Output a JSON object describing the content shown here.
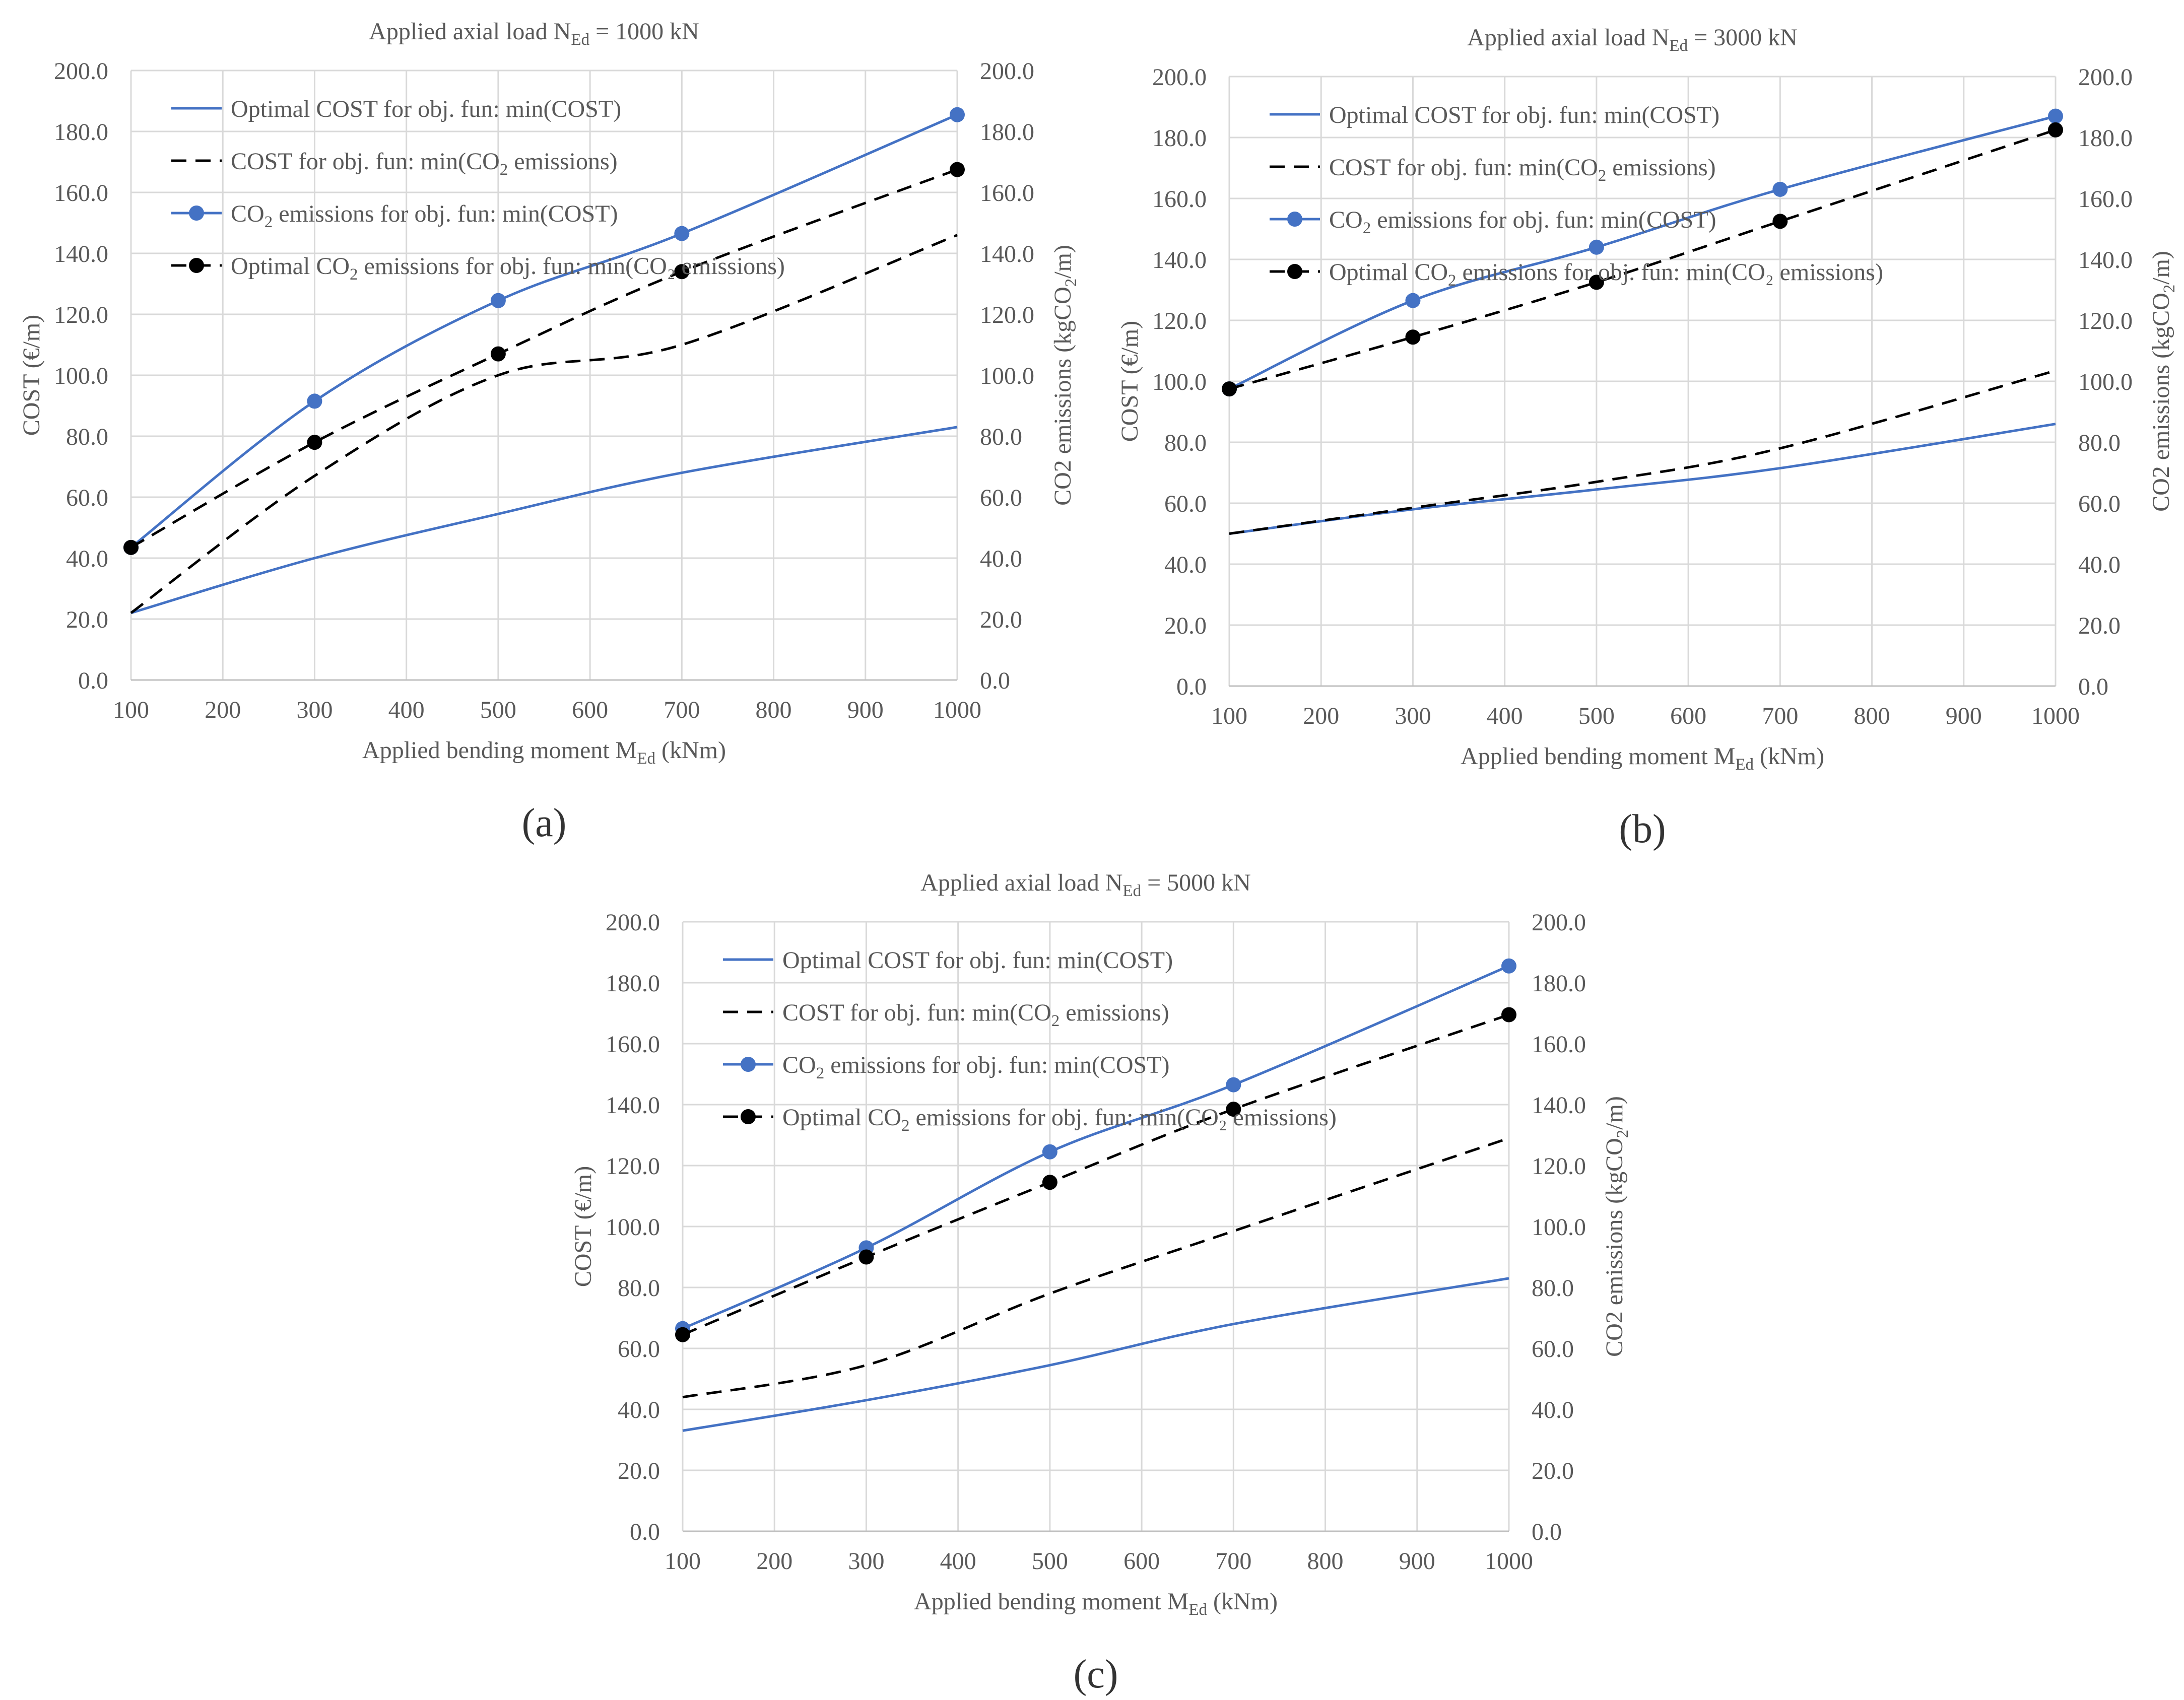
{
  "chart_data": [
    {
      "type": "line",
      "panel_label": "(a)",
      "title": {
        "prefix": "Applied axial load N",
        "sub": "Ed",
        "suffix": " = 1000 kN"
      },
      "xlabel": {
        "prefix": "Applied bending moment M",
        "sub": "Ed",
        "suffix": " (kNm)"
      },
      "ylabel": "COST (€/m)",
      "y2label": {
        "prefix": "CO2 emissions (kgCO",
        "sub": "2",
        "suffix": "/m)"
      },
      "x_ticks": [
        100,
        200,
        300,
        400,
        500,
        600,
        700,
        800,
        900,
        1000
      ],
      "xlim": [
        100,
        1000
      ],
      "ylim": [
        0,
        200
      ],
      "y2lim": [
        0,
        200
      ],
      "y_ticks": [
        "0.0",
        "20.0",
        "40.0",
        "60.0",
        "80.0",
        "100.0",
        "120.0",
        "140.0",
        "160.0",
        "180.0",
        "200.0"
      ],
      "grid": true,
      "legend_position": "top-left",
      "series": [
        {
          "name": {
            "prefix": "Optimal COST for obj. fun: min(COST)",
            "sub": "",
            "suffix": ""
          },
          "style": "solid-blue",
          "markers": false,
          "x": [
            100,
            300,
            500,
            700,
            1000
          ],
          "values": [
            22,
            40,
            54.5,
            68,
            83
          ]
        },
        {
          "name": {
            "prefix": "COST for obj. fun: min(CO",
            "sub": "2",
            "suffix": " emissions)"
          },
          "style": "dashed-black",
          "markers": false,
          "x": [
            100,
            300,
            500,
            700,
            1000
          ],
          "values": [
            22,
            67,
            100,
            110,
            146
          ]
        },
        {
          "name": {
            "prefix": "CO",
            "sub": "2",
            "suffix": " emissions for obj. fun: min(COST)"
          },
          "style": "solid-blue",
          "markers": true,
          "x": [
            100,
            300,
            500,
            700,
            1000
          ],
          "values": [
            43.5,
            91.5,
            124.5,
            146.5,
            185.5
          ]
        },
        {
          "name": {
            "prefix": "Optimal CO",
            "sub": "2",
            "suffix": " emissions for obj. fun: min(CO₂ emissions)"
          },
          "style": "dashed-black",
          "markers": true,
          "x": [
            100,
            300,
            500,
            700,
            1000
          ],
          "values": [
            43.5,
            78,
            107,
            134,
            167.5
          ]
        }
      ]
    },
    {
      "type": "line",
      "panel_label": "(b)",
      "title": {
        "prefix": "Applied axial load N",
        "sub": "Ed",
        "suffix": " = 3000 kN"
      },
      "xlabel": {
        "prefix": "Applied bending moment M",
        "sub": "Ed",
        "suffix": " (kNm)"
      },
      "ylabel": "COST (€/m)",
      "y2label": {
        "prefix": "CO2 emissions (kgCO",
        "sub": "2",
        "suffix": "/m)"
      },
      "x_ticks": [
        100,
        200,
        300,
        400,
        500,
        600,
        700,
        800,
        900,
        1000
      ],
      "xlim": [
        100,
        1000
      ],
      "ylim": [
        0,
        200
      ],
      "y2lim": [
        0,
        200
      ],
      "y_ticks": [
        "0.0",
        "20.0",
        "40.0",
        "60.0",
        "80.0",
        "100.0",
        "120.0",
        "140.0",
        "160.0",
        "180.0",
        "200.0"
      ],
      "grid": true,
      "legend_position": "top-left",
      "series": [
        {
          "name": {
            "prefix": "Optimal COST for obj. fun: min(COST)",
            "sub": "",
            "suffix": ""
          },
          "style": "solid-blue",
          "markers": false,
          "x": [
            100,
            300,
            500,
            700,
            1000
          ],
          "values": [
            50,
            58,
            64.5,
            71.5,
            86
          ]
        },
        {
          "name": {
            "prefix": "COST for obj. fun: min(CO",
            "sub": "2",
            "suffix": " emissions)"
          },
          "style": "dashed-black",
          "markers": false,
          "x": [
            100,
            300,
            500,
            700,
            1000
          ],
          "values": [
            50,
            58.5,
            67,
            78,
            103.5
          ]
        },
        {
          "name": {
            "prefix": "CO",
            "sub": "2",
            "suffix": " emissions for obj. fun: min(COST)"
          },
          "style": "solid-blue",
          "markers": true,
          "x": [
            100,
            300,
            500,
            700,
            1000
          ],
          "values": [
            97.5,
            126.5,
            144,
            163,
            187
          ]
        },
        {
          "name": {
            "prefix": "Optimal CO",
            "sub": "2",
            "suffix": " emissions for obj. fun: min(CO₂ emissions)"
          },
          "style": "dashed-black",
          "markers": true,
          "x": [
            100,
            300,
            500,
            700,
            1000
          ],
          "values": [
            97.5,
            114.5,
            132.5,
            152.5,
            182.5
          ]
        }
      ]
    },
    {
      "type": "line",
      "panel_label": "(c)",
      "title": {
        "prefix": "Applied axial load N",
        "sub": "Ed",
        "suffix": " = 5000 kN"
      },
      "xlabel": {
        "prefix": "Applied bending moment M",
        "sub": "Ed",
        "suffix": " (kNm)"
      },
      "ylabel": "COST (€/m)",
      "y2label": {
        "prefix": "CO2 emissions (kgCO",
        "sub": "2",
        "suffix": "/m)"
      },
      "x_ticks": [
        100,
        200,
        300,
        400,
        500,
        600,
        700,
        800,
        900,
        1000
      ],
      "xlim": [
        100,
        1000
      ],
      "ylim": [
        0,
        200
      ],
      "y2lim": [
        0,
        200
      ],
      "y_ticks": [
        "0.0",
        "20.0",
        "40.0",
        "60.0",
        "80.0",
        "100.0",
        "120.0",
        "140.0",
        "160.0",
        "180.0",
        "200.0"
      ],
      "grid": true,
      "legend_position": "top-left",
      "series": [
        {
          "name": {
            "prefix": "Optimal COST for obj. fun: min(COST)",
            "sub": "",
            "suffix": ""
          },
          "style": "solid-blue",
          "markers": false,
          "x": [
            100,
            300,
            500,
            700,
            1000
          ],
          "values": [
            33,
            43,
            54.5,
            68,
            83
          ]
        },
        {
          "name": {
            "prefix": "COST for obj. fun: min(CO",
            "sub": "2",
            "suffix": " emissions)"
          },
          "style": "dashed-black",
          "markers": false,
          "x": [
            100,
            300,
            500,
            700,
            1000
          ],
          "values": [
            44,
            54.5,
            78,
            98.5,
            129
          ]
        },
        {
          "name": {
            "prefix": "CO",
            "sub": "2",
            "suffix": " emissions for obj. fun: min(COST)"
          },
          "style": "solid-blue",
          "markers": true,
          "x": [
            100,
            300,
            500,
            700,
            1000
          ],
          "values": [
            66.5,
            93,
            124.5,
            146.5,
            185.5
          ]
        },
        {
          "name": {
            "prefix": "Optimal CO",
            "sub": "2",
            "suffix": " emissions for obj. fun: min(CO₂ emissions)"
          },
          "style": "dashed-black",
          "markers": true,
          "x": [
            100,
            300,
            500,
            700,
            1000
          ],
          "values": [
            64.5,
            90,
            114.5,
            138.5,
            169.5
          ]
        }
      ]
    }
  ],
  "colors": {
    "blue": "#4472C4",
    "black": "#000000",
    "grid": "#D9D9D9",
    "text": "#595959",
    "axis": "#BFBFBF"
  }
}
